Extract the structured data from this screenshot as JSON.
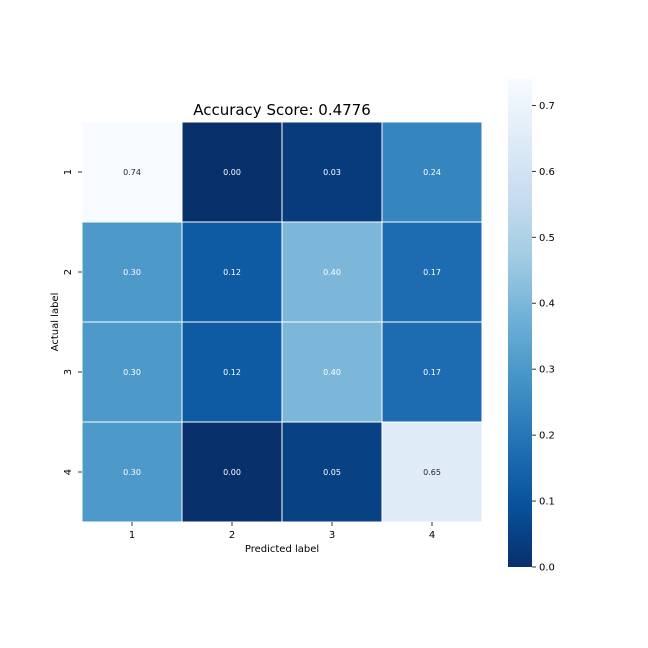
{
  "chart_data": {
    "type": "heatmap",
    "title": "Accuracy Score: 0.4776",
    "xlabel": "Predicted label",
    "ylabel": "Actual label",
    "x_categories": [
      "1",
      "2",
      "3",
      "4"
    ],
    "y_categories": [
      "1",
      "2",
      "3",
      "4"
    ],
    "values": [
      [
        0.74,
        0.0,
        0.03,
        0.24
      ],
      [
        0.3,
        0.12,
        0.4,
        0.17
      ],
      [
        0.3,
        0.12,
        0.4,
        0.17
      ],
      [
        0.3,
        0.0,
        0.05,
        0.65
      ]
    ],
    "value_format": "2 decimals",
    "colormap": "Blues_r",
    "colorbar": {
      "range": [
        0.0,
        0.74
      ],
      "ticks": [
        "0.0",
        "0.1",
        "0.2",
        "0.3",
        "0.4",
        "0.5",
        "0.6",
        "0.7"
      ]
    },
    "grid_line_color": "#ffffff",
    "text_light_color": "#ffffff",
    "text_dark_color": "#262626"
  }
}
